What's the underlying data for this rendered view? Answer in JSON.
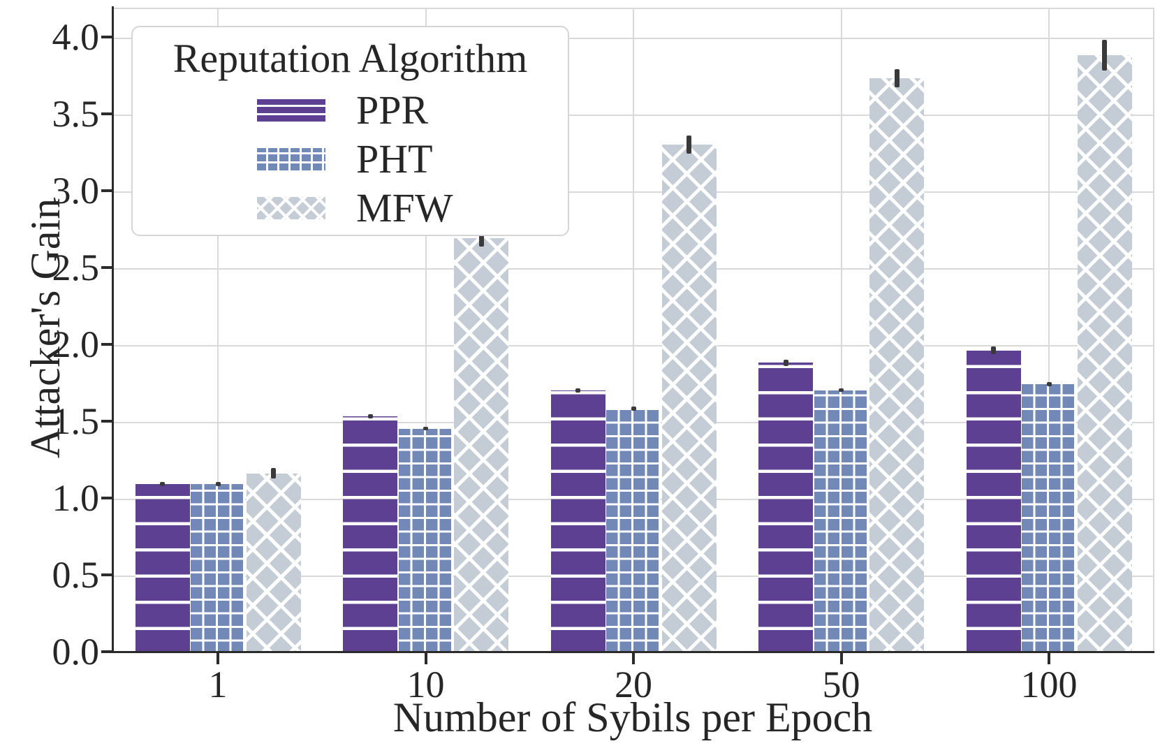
{
  "figure": {
    "background": "#ffffff"
  },
  "chart_data": {
    "type": "bar",
    "title": "",
    "xlabel": "Number of Sybils per Epoch",
    "ylabel": "Attacker's Gain",
    "categories": [
      "1",
      "10",
      "20",
      "50",
      "100"
    ],
    "series": [
      {
        "name": "PPR",
        "color": "#5d4092",
        "hatch": "horizontal-lines",
        "values": [
          1.1,
          1.54,
          1.71,
          1.89,
          1.97
        ],
        "errors": [
          0.012,
          0.015,
          0.015,
          0.02,
          0.025
        ]
      },
      {
        "name": "PHT",
        "color": "#7289b7",
        "hatch": "grid",
        "values": [
          1.1,
          1.46,
          1.59,
          1.71,
          1.75
        ],
        "errors": [
          0.012,
          0.012,
          0.015,
          0.012,
          0.015
        ]
      },
      {
        "name": "MFW",
        "color": "#c4cdd5",
        "hatch": "diagonal-crosshatch",
        "values": [
          1.17,
          2.7,
          3.31,
          3.74,
          3.89
        ],
        "errors": [
          0.035,
          0.055,
          0.06,
          0.06,
          0.1
        ]
      }
    ],
    "y_ticks": [
      "0.0",
      "0.5",
      "1.0",
      "1.5",
      "2.0",
      "2.5",
      "3.0",
      "3.5",
      "4.0"
    ],
    "ylim": [
      0,
      4.19
    ],
    "grid": true,
    "legend": {
      "title": "Reputation Algorithm",
      "position": "upper left"
    },
    "error_bar_color": "#3a3a3a",
    "hatch_color": "#ffffff"
  }
}
